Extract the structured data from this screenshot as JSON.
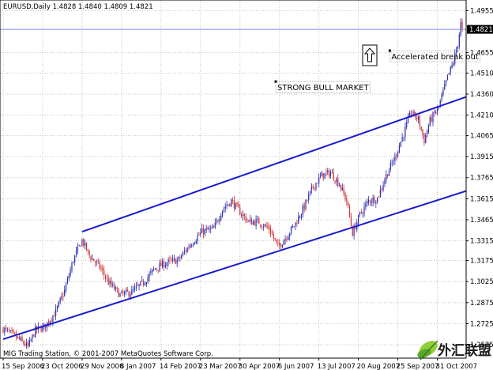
{
  "chart_data": {
    "type": "candlestick",
    "symbol_header": "EURUSD,Daily  1.4828 1.4840 1.4809 1.4821",
    "footer": "MIG Trading Station, © 2001-2007 MetaQuotes Software Corp.",
    "current_price": "1.4821",
    "current_price_value": 1.4821,
    "y_ticks": [
      1.4955,
      1.4655,
      1.451,
      1.436,
      1.421,
      1.4065,
      1.3915,
      1.3765,
      1.3615,
      1.3465,
      1.3315,
      1.3175,
      1.3025,
      1.2875,
      1.2725,
      1.2575
    ],
    "y_tick_labels": [
      "1.4955",
      "1.4655",
      "1.4510",
      "1.4360",
      "1.4210",
      "1.4065",
      "1.3915",
      "1.3765",
      "1.3615",
      "1.3465",
      "1.3315",
      "1.3175",
      "1.3025",
      "1.2875",
      "1.2725",
      "1.2575"
    ],
    "ylim": [
      1.248,
      1.503
    ],
    "x_labels": [
      "15 Sep 2006",
      "23 Oct 2006",
      "29 Nov 2006",
      "8 Jan 2007",
      "14 Feb 2007",
      "23 Mar 2007",
      "30 Apr 2007",
      "6 Jun 2007",
      "13 Jul 2007",
      "20 Aug 2007",
      "25 Sep 2007",
      "31 Oct 2007"
    ],
    "x_label_index": [
      0,
      27,
      54,
      81,
      108,
      135,
      162,
      189,
      216,
      243,
      270,
      297
    ],
    "bar_count": 315,
    "grid": true,
    "close_anchors": [
      [
        0,
        1.269
      ],
      [
        10,
        1.262
      ],
      [
        17,
        1.256
      ],
      [
        22,
        1.268
      ],
      [
        28,
        1.27
      ],
      [
        36,
        1.281
      ],
      [
        42,
        1.296
      ],
      [
        48,
        1.318
      ],
      [
        54,
        1.332
      ],
      [
        59,
        1.321
      ],
      [
        66,
        1.313
      ],
      [
        72,
        1.302
      ],
      [
        80,
        1.293
      ],
      [
        88,
        1.295
      ],
      [
        96,
        1.302
      ],
      [
        104,
        1.312
      ],
      [
        112,
        1.316
      ],
      [
        120,
        1.318
      ],
      [
        128,
        1.329
      ],
      [
        136,
        1.338
      ],
      [
        144,
        1.34
      ],
      [
        150,
        1.354
      ],
      [
        156,
        1.36
      ],
      [
        162,
        1.352
      ],
      [
        168,
        1.345
      ],
      [
        175,
        1.345
      ],
      [
        182,
        1.34
      ],
      [
        188,
        1.327
      ],
      [
        194,
        1.335
      ],
      [
        200,
        1.344
      ],
      [
        206,
        1.356
      ],
      [
        212,
        1.37
      ],
      [
        218,
        1.378
      ],
      [
        224,
        1.38
      ],
      [
        230,
        1.372
      ],
      [
        235,
        1.36
      ],
      [
        239,
        1.337
      ],
      [
        244,
        1.35
      ],
      [
        250,
        1.36
      ],
      [
        256,
        1.362
      ],
      [
        262,
        1.378
      ],
      [
        268,
        1.391
      ],
      [
        274,
        1.408
      ],
      [
        279,
        1.423
      ],
      [
        284,
        1.418
      ],
      [
        288,
        1.403
      ],
      [
        292,
        1.417
      ],
      [
        298,
        1.427
      ],
      [
        304,
        1.448
      ],
      [
        308,
        1.459
      ],
      [
        311,
        1.472
      ],
      [
        313,
        1.486
      ],
      [
        314,
        1.4821
      ]
    ],
    "channel_upper": {
      "start": [
        54,
        1.338
      ],
      "end": [
        314,
        1.434
      ]
    },
    "channel_lower": {
      "start": [
        0,
        1.2615
      ],
      "end": [
        314,
        1.367
      ]
    },
    "annotations": [
      {
        "text": "Accelerated break out",
        "at_index": 265,
        "value": 1.463
      },
      {
        "text": "STRONG BULL MARKET",
        "at_index": 187,
        "value": 1.441
      }
    ],
    "arrow_icon": "up-arrow-icon",
    "colors": {
      "bull": "#2a2ab0",
      "bear": "#d03030",
      "channel": "#1a1ad0",
      "grid": "#c4c4c4",
      "price_line": "#8888ff",
      "price_tag_bg": "#000000"
    },
    "watermark": {
      "text": "外汇联盟",
      "icon": "leaf-logo-icon"
    }
  }
}
